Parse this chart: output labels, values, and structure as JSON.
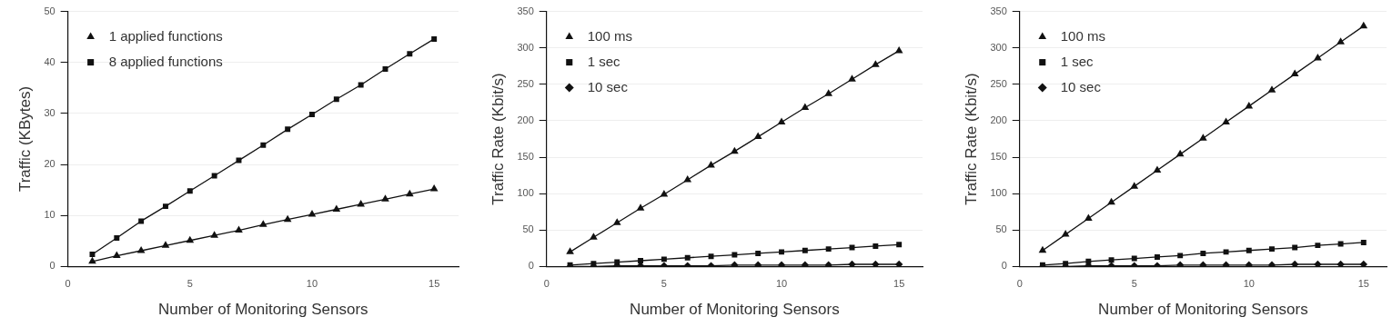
{
  "chart_data": [
    {
      "type": "line",
      "xlabel": "Number of Monitoring Sensors",
      "ylabel": "Traffic (KBytes)",
      "x": [
        1,
        2,
        3,
        4,
        5,
        6,
        7,
        8,
        9,
        10,
        11,
        12,
        13,
        14,
        15
      ],
      "xlim": [
        0,
        16
      ],
      "xticks": [
        0,
        5,
        10,
        15
      ],
      "ylim": [
        0,
        50
      ],
      "yticks": [
        0,
        10,
        20,
        30,
        40,
        50
      ],
      "grid": "y",
      "legend": "top left",
      "line_style": "solid",
      "series": [
        {
          "name": "1 applied functions",
          "color": "#111111",
          "marker": "triangle",
          "values": [
            1.0,
            2.1,
            3.1,
            4.1,
            5.1,
            6.1,
            7.1,
            8.2,
            9.2,
            10.2,
            11.2,
            12.2,
            13.2,
            14.2,
            15.2
          ]
        },
        {
          "name": "8 applied functions",
          "color": "#111111",
          "marker": "square",
          "values": [
            2.4,
            5.6,
            8.9,
            11.8,
            14.8,
            17.8,
            20.8,
            23.8,
            26.9,
            29.8,
            32.8,
            35.6,
            38.7,
            41.7,
            44.6
          ]
        }
      ]
    },
    {
      "type": "line",
      "xlabel": "Number of Monitoring Sensors",
      "ylabel": "Traffic Rate (Kbit/s)",
      "x": [
        1,
        2,
        3,
        4,
        5,
        6,
        7,
        8,
        9,
        10,
        11,
        12,
        13,
        14,
        15
      ],
      "xlim": [
        0,
        16
      ],
      "xticks": [
        0,
        5,
        10,
        15
      ],
      "ylim": [
        0,
        350
      ],
      "yticks": [
        0,
        50,
        100,
        150,
        200,
        250,
        300,
        350
      ],
      "grid": "y",
      "legend": "top left",
      "line_style": "solid",
      "series": [
        {
          "name": "100 ms",
          "color": "#111111",
          "marker": "triangle",
          "values": [
            20,
            40,
            60,
            80,
            99,
            119,
            139,
            158,
            178,
            198,
            218,
            237,
            257,
            277,
            296
          ]
        },
        {
          "name": "1 sec",
          "color": "#111111",
          "marker": "square",
          "values": [
            2,
            4,
            6,
            8,
            10,
            12,
            14,
            16,
            18,
            20,
            22,
            24,
            26,
            28,
            30
          ]
        },
        {
          "name": "10 sec",
          "color": "#111111",
          "marker": "diamond",
          "values": [
            0,
            0,
            1,
            1,
            1,
            1,
            1,
            2,
            2,
            2,
            2,
            2,
            3,
            3,
            3
          ]
        }
      ]
    },
    {
      "type": "line",
      "xlabel": "Number of Monitoring Sensors",
      "ylabel": "Traffic Rate (Kbit/s)",
      "x": [
        1,
        2,
        3,
        4,
        5,
        6,
        7,
        8,
        9,
        10,
        11,
        12,
        13,
        14,
        15
      ],
      "xlim": [
        0,
        16
      ],
      "xticks": [
        0,
        5,
        10,
        15
      ],
      "ylim": [
        0,
        350
      ],
      "yticks": [
        0,
        50,
        100,
        150,
        200,
        250,
        300,
        350
      ],
      "grid": "y",
      "legend": "top left",
      "line_style": "solid",
      "series": [
        {
          "name": "100 ms",
          "color": "#111111",
          "marker": "triangle",
          "values": [
            22,
            44,
            66,
            88,
            110,
            132,
            154,
            176,
            198,
            220,
            242,
            264,
            286,
            308,
            330
          ]
        },
        {
          "name": "1 sec",
          "color": "#111111",
          "marker": "square",
          "values": [
            2,
            4,
            7,
            9,
            11,
            13,
            15,
            18,
            20,
            22,
            24,
            26,
            29,
            31,
            33
          ]
        },
        {
          "name": "10 sec",
          "color": "#111111",
          "marker": "diamond",
          "values": [
            0,
            0,
            1,
            1,
            1,
            1,
            2,
            2,
            2,
            2,
            2,
            3,
            3,
            3,
            3
          ]
        }
      ]
    }
  ]
}
